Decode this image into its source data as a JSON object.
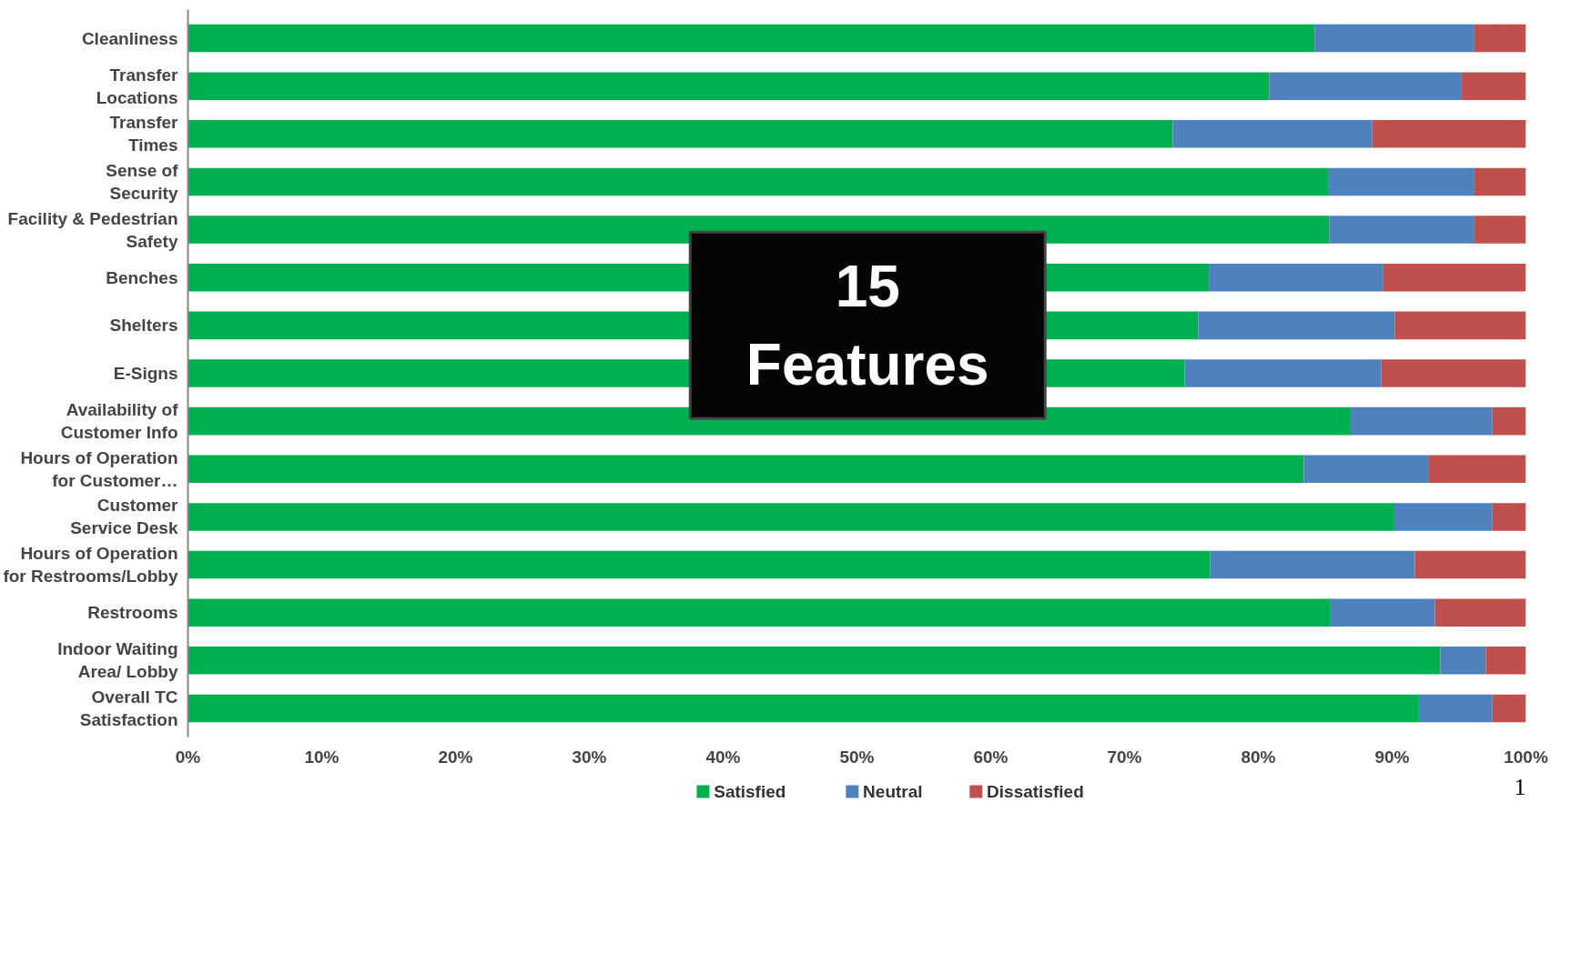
{
  "chart_data": {
    "type": "bar",
    "orientation": "horizontal",
    "stacked": true,
    "categories": [
      "Cleanliness",
      "Transfer\nLocations",
      "Transfer\nTimes",
      "Sense of\nSecurity",
      "Facility & Pedestrian\nSafety",
      "Benches",
      "Shelters",
      "E-Signs",
      "Availability of\nCustomer Info",
      "Hours of Operation\nfor Customer…",
      "Customer\nService Desk",
      "Hours of Operation\nfor Restrooms/Lobby",
      "Restrooms",
      "Indoor Waiting\nArea/ Lobby",
      "Overall TC\nSatisfaction"
    ],
    "series": [
      {
        "name": "Satisfied",
        "color": "#00b050",
        "values": [
          84.2,
          80.8,
          73.6,
          85.2,
          85.3,
          76.3,
          75.5,
          74.5,
          86.9,
          83.4,
          90.1,
          76.4,
          85.4,
          93.6,
          92.0
        ]
      },
      {
        "name": "Neutral",
        "color": "#4f81bd",
        "values": [
          11.9,
          14.4,
          14.9,
          10.9,
          10.8,
          13.0,
          14.7,
          14.7,
          10.6,
          9.3,
          7.4,
          15.3,
          7.8,
          3.4,
          5.5
        ]
      },
      {
        "name": "Dissatisfied",
        "color": "#c0504d",
        "values": [
          3.9,
          4.8,
          11.5,
          3.9,
          3.9,
          10.7,
          9.8,
          10.8,
          2.5,
          7.3,
          2.5,
          8.3,
          6.8,
          3.0,
          2.5
        ]
      }
    ],
    "xlim": [
      0,
      100
    ],
    "xticks": [
      {
        "value": 0,
        "label": "0%"
      },
      {
        "value": 10,
        "label": "10%"
      },
      {
        "value": 20,
        "label": "20%"
      },
      {
        "value": 30,
        "label": "30%"
      },
      {
        "value": 40,
        "label": "40%"
      },
      {
        "value": 50,
        "label": "50%"
      },
      {
        "value": 60,
        "label": "60%"
      },
      {
        "value": 70,
        "label": "70%"
      },
      {
        "value": 80,
        "label": "80%"
      },
      {
        "value": 90,
        "label": "90%"
      },
      {
        "value": 100,
        "label": "100%"
      }
    ],
    "grid": false,
    "legend": "bottom",
    "annotations": [
      "15\nFeatures",
      "1"
    ]
  }
}
